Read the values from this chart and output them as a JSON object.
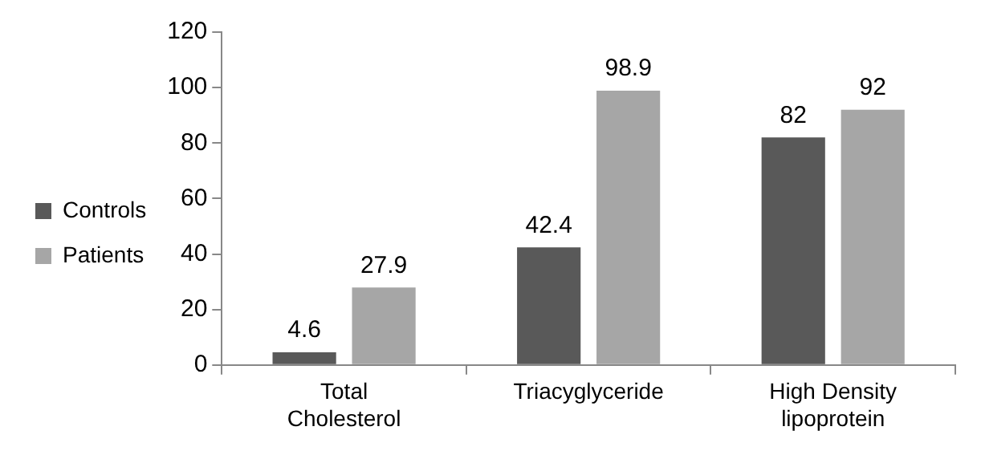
{
  "chart_data": {
    "type": "bar",
    "categories": [
      "Total Cholesterol",
      "Triacyglyceride",
      "High Density lipoprotein"
    ],
    "series": [
      {
        "name": "Controls",
        "color": "#595959",
        "values": [
          4.6,
          42.4,
          82
        ]
      },
      {
        "name": "Patients",
        "color": "#a6a6a6",
        "values": [
          27.9,
          98.9,
          92
        ]
      }
    ],
    "ylim": [
      0,
      120
    ],
    "yticks": [
      0,
      20,
      40,
      60,
      80,
      100,
      120
    ],
    "grid": false,
    "legend": "left",
    "data_labels": true
  }
}
